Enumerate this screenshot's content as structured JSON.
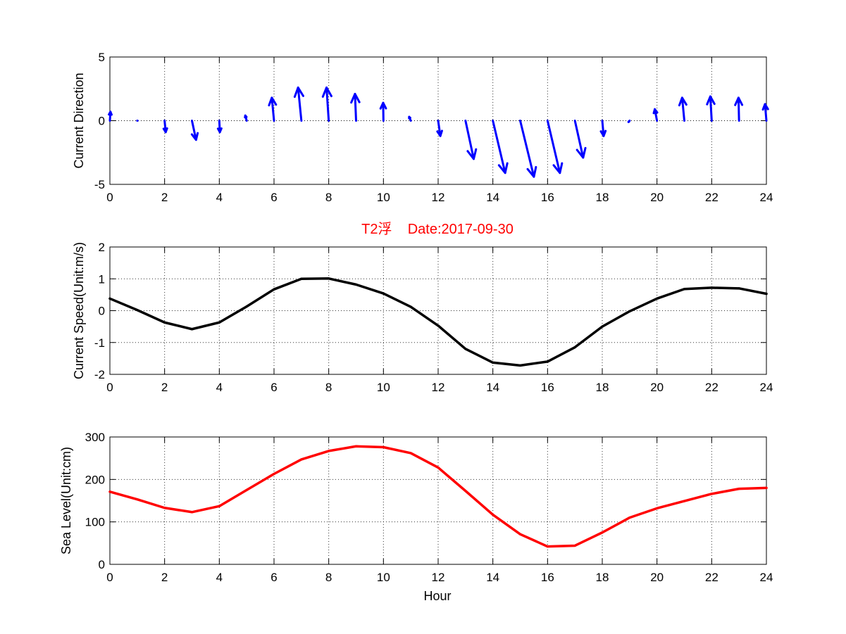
{
  "colors": {
    "arrow": "#0000ff",
    "speed": "#000000",
    "level": "#ff0000",
    "title": "#ff0000"
  },
  "chart_data": [
    {
      "type": "quiver",
      "ylabel": "Current Direction",
      "xlim": [
        0,
        24
      ],
      "ylim": [
        -5,
        5
      ],
      "xticks": [
        0,
        2,
        4,
        6,
        8,
        10,
        12,
        14,
        16,
        18,
        20,
        22,
        24
      ],
      "yticks": [
        -5,
        0,
        5
      ],
      "x": [
        0,
        1,
        2,
        3,
        4,
        5,
        6,
        7,
        8,
        9,
        10,
        11,
        12,
        13,
        14,
        15,
        16,
        17,
        18,
        19,
        20,
        21,
        22,
        23,
        24
      ],
      "u": [
        0.02,
        0.01,
        0.04,
        0.15,
        0.02,
        -0.05,
        -0.08,
        -0.12,
        -0.08,
        -0.04,
        -0.01,
        -0.06,
        0.08,
        0.3,
        0.45,
        0.5,
        0.45,
        0.3,
        0.05,
        -0.04,
        -0.08,
        -0.08,
        -0.05,
        -0.02,
        -0.05
      ],
      "v": [
        0.7,
        0.0,
        -0.9,
        -1.5,
        -0.9,
        0.4,
        1.8,
        2.6,
        2.6,
        2.1,
        1.4,
        0.3,
        -1.2,
        -3.0,
        -4.1,
        -4.4,
        -4.1,
        -2.9,
        -1.2,
        -0.1,
        0.9,
        1.8,
        1.9,
        1.8,
        1.3
      ]
    },
    {
      "type": "line",
      "title": "T2浮    Date:2017-09-30",
      "ylabel": "Current Speed(Unit:m/s)",
      "xlim": [
        0,
        24
      ],
      "ylim": [
        -2,
        2
      ],
      "xticks": [
        0,
        2,
        4,
        6,
        8,
        10,
        12,
        14,
        16,
        18,
        20,
        22,
        24
      ],
      "yticks": [
        -2,
        -1,
        0,
        1,
        2
      ],
      "x": [
        0,
        1,
        2,
        3,
        4,
        5,
        6,
        7,
        8,
        9,
        10,
        11,
        12,
        13,
        14,
        15,
        16,
        17,
        18,
        19,
        20,
        21,
        22,
        23,
        24
      ],
      "y": [
        0.38,
        0.02,
        -0.37,
        -0.58,
        -0.37,
        0.13,
        0.67,
        1.0,
        1.01,
        0.82,
        0.54,
        0.12,
        -0.47,
        -1.2,
        -1.63,
        -1.72,
        -1.6,
        -1.15,
        -0.5,
        -0.02,
        0.38,
        0.68,
        0.72,
        0.7,
        0.53
      ]
    },
    {
      "type": "line",
      "xlabel": "Hour",
      "ylabel": "Sea Level(Unit:cm)",
      "xlim": [
        0,
        24
      ],
      "ylim": [
        0,
        300
      ],
      "xticks": [
        0,
        2,
        4,
        6,
        8,
        10,
        12,
        14,
        16,
        18,
        20,
        22,
        24
      ],
      "yticks": [
        0,
        100,
        200,
        300
      ],
      "x": [
        0,
        1,
        2,
        3,
        4,
        5,
        6,
        7,
        8,
        9,
        10,
        11,
        12,
        13,
        14,
        15,
        16,
        17,
        18,
        19,
        20,
        21,
        22,
        23,
        24
      ],
      "y": [
        171,
        153,
        133,
        123,
        137,
        175,
        213,
        247,
        267,
        278,
        276,
        262,
        228,
        173,
        117,
        71,
        42,
        44,
        75,
        110,
        132,
        149,
        166,
        178,
        180
      ]
    }
  ]
}
